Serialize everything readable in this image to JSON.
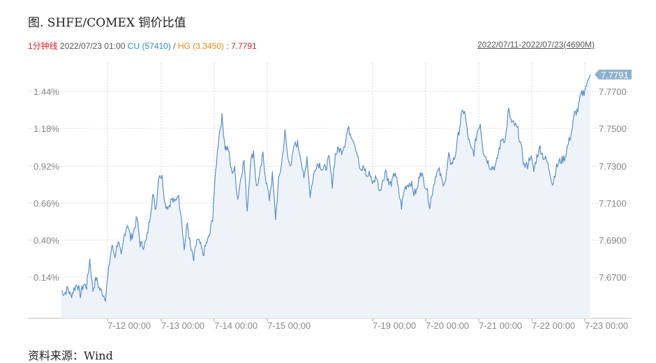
{
  "title": "图. SHFE/COMEX 铜价比值",
  "subtitle": {
    "interval": "1分钟线",
    "datetime": "2022/07/23 01:00",
    "cu_label": "CU",
    "cu_value": "(57410)",
    "sep1": "/",
    "hg_label": "HG",
    "hg_value": "(3.3450)",
    "sep2": ":",
    "ratio": "7.7791"
  },
  "date_range": "2022/07/11-2022/07/23(4690M)",
  "source": "资料来源：Wind",
  "colors": {
    "line": "#5a8fc4",
    "area": "#eef3f9",
    "grid": "#d7d7d7",
    "label_bg": "#8fb0cf"
  },
  "chart_data": {
    "type": "area",
    "title": "",
    "last_value_label": "7.7791",
    "x_ticks": [
      "7-12 00:00",
      "7-13 00:00",
      "7-14 00:00",
      "7-15 00:00",
      "7-19 00:00",
      "7-20 00:00",
      "7-21 00:00",
      "7-22 00:00",
      "7-23 00:00"
    ],
    "left_ticks": [
      "1.44%",
      "1.18%",
      "0.92%",
      "0.66%",
      "0.40%",
      "0.14%"
    ],
    "right_ticks": [
      "7.7700",
      "7.7500",
      "7.7300",
      "7.7100",
      "7.6900",
      "7.6700"
    ],
    "ylim": [
      7.658,
      7.78
    ],
    "series": [
      {
        "values": [
          7.6627,
          7.6612,
          7.664,
          7.6598,
          7.6636,
          7.6665,
          7.6605,
          7.666,
          7.665,
          7.6795,
          7.663,
          7.6695,
          7.664,
          7.6615,
          7.659,
          7.674,
          7.687,
          7.6815,
          7.69,
          7.6805,
          7.693,
          7.699,
          7.6905,
          7.695,
          7.702,
          7.688,
          7.687,
          7.6895,
          7.701,
          7.7145,
          7.7065,
          7.726,
          7.7235,
          7.709,
          7.708,
          7.712,
          7.71,
          7.715,
          7.7045,
          7.685,
          7.699,
          7.686,
          7.679,
          7.69,
          7.688,
          7.682,
          7.688,
          7.692,
          7.702,
          7.727,
          7.746,
          7.756,
          7.74,
          7.739,
          7.727,
          7.728,
          7.712,
          7.724,
          7.733,
          7.706,
          7.731,
          7.738,
          7.718,
          7.725,
          7.736,
          7.722,
          7.712,
          7.725,
          7.702,
          7.722,
          7.732,
          7.748,
          7.733,
          7.731,
          7.741,
          7.742,
          7.735,
          7.722,
          7.735,
          7.714,
          7.724,
          7.731,
          7.731,
          7.728,
          7.729,
          7.734,
          7.72,
          7.736,
          7.739,
          7.738,
          7.742,
          7.75,
          7.747,
          7.743,
          7.736,
          7.726,
          7.73,
          7.724,
          7.726,
          7.72,
          7.725,
          7.717,
          7.721,
          7.728,
          7.72,
          7.721,
          7.727,
          7.717,
          7.708,
          7.718,
          7.72,
          7.721,
          7.715,
          7.717,
          7.728,
          7.722,
          7.718,
          7.708,
          7.718,
          7.726,
          7.727,
          7.721,
          7.722,
          7.735,
          7.731,
          7.735,
          7.746,
          7.757,
          7.76,
          7.747,
          7.739,
          7.737,
          7.748,
          7.753,
          7.738,
          7.734,
          7.73,
          7.729,
          7.73,
          7.739,
          7.745,
          7.744,
          7.76,
          7.753,
          7.752,
          7.749,
          7.74,
          7.73,
          7.73,
          7.736,
          7.727,
          7.735,
          7.74,
          7.735,
          7.733,
          7.728,
          7.72,
          7.728,
          7.732,
          7.733,
          7.735,
          7.742,
          7.748,
          7.758,
          7.76,
          7.768,
          7.77,
          7.775,
          7.7791
        ]
      }
    ]
  }
}
